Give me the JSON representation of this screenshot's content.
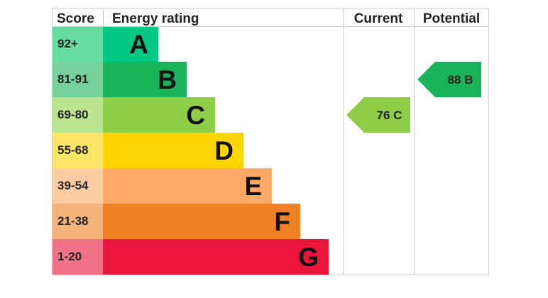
{
  "headers": {
    "score": "Score",
    "energy_rating": "Energy rating",
    "current": "Current",
    "potential": "Potential"
  },
  "chart_data": {
    "type": "bar",
    "categories": [
      "A",
      "B",
      "C",
      "D",
      "E",
      "F",
      "G"
    ],
    "bands": [
      {
        "letter": "A",
        "range": "92+",
        "min": 92,
        "max": 100,
        "color": "#00c781",
        "score_color": "#66dd9f"
      },
      {
        "letter": "B",
        "range": "81-91",
        "min": 81,
        "max": 91,
        "color": "#19b459",
        "score_color": "#75d199"
      },
      {
        "letter": "C",
        "range": "69-80",
        "min": 69,
        "max": 80,
        "color": "#8dce46",
        "score_color": "#bbe490"
      },
      {
        "letter": "D",
        "range": "55-68",
        "min": 55,
        "max": 68,
        "color": "#ffd500",
        "score_color": "#ffe666"
      },
      {
        "letter": "E",
        "range": "39-54",
        "min": 39,
        "max": 54,
        "color": "#fcaa65",
        "score_color": "#fdcca3"
      },
      {
        "letter": "F",
        "range": "21-38",
        "min": 21,
        "max": 38,
        "color": "#ef8023",
        "score_color": "#f5b37b"
      },
      {
        "letter": "G",
        "range": "1-20",
        "min": 1,
        "max": 20,
        "color": "#e9153b",
        "score_color": "#f27389"
      }
    ],
    "current": {
      "value": 76,
      "band": "C",
      "label": "76  C",
      "color": "#8dce46"
    },
    "potential": {
      "value": 88,
      "band": "B",
      "label": "88  B",
      "color": "#19b459"
    }
  }
}
